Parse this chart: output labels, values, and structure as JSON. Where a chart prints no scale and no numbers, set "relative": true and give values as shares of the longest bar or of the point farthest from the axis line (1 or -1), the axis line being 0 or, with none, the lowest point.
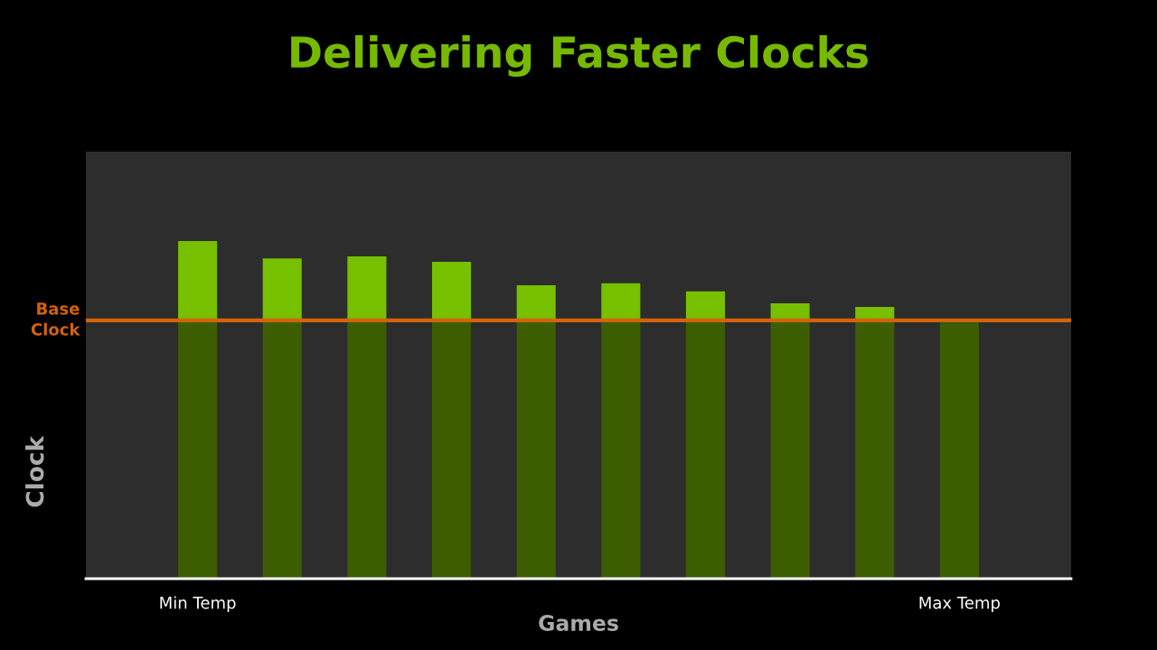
{
  "chart_data": {
    "type": "bar",
    "title": "Delivering Faster Clocks",
    "xlabel": "Games",
    "ylabel": "Clock",
    "relative": true,
    "stacked": true,
    "categories": [
      "Min Temp",
      null,
      null,
      null,
      null,
      null,
      null,
      null,
      null,
      "Max Temp"
    ],
    "series": [
      {
        "color": "#3d5e00",
        "values": [
          0.765,
          0.765,
          0.765,
          0.765,
          0.765,
          0.765,
          0.765,
          0.765,
          0.765,
          0.759
        ]
      },
      {
        "color": "#76c000",
        "values": [
          0.235,
          0.184,
          0.19,
          0.174,
          0.104,
          0.11,
          0.086,
          0.051,
          0.04,
          0
        ]
      }
    ],
    "ref_lines": [
      {
        "axis": "y",
        "value": 0.765,
        "label": "Base\nClock",
        "color": "#d4620a"
      }
    ],
    "grid": false,
    "legend": false
  }
}
